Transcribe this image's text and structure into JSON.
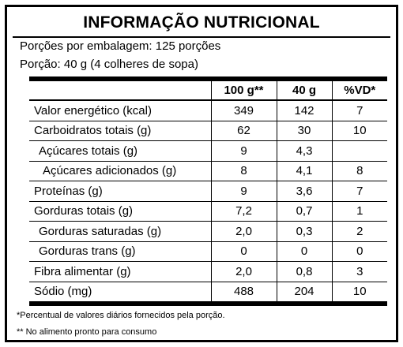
{
  "title": "INFORMAÇÃO NUTRICIONAL",
  "servings_per_package": "Porções por embalagem: 125 porções",
  "serving_size": "Porção: 40 g (4 colheres de sopa)",
  "table": {
    "headers": [
      "",
      "100 g**",
      "40 g",
      "%VD*"
    ],
    "rows": [
      {
        "name": "Valor energético (kcal)",
        "indent": 0,
        "per100": "349",
        "perPortion": "142",
        "vd": "7"
      },
      {
        "name": "Carboidratos totais (g)",
        "indent": 0,
        "per100": "62",
        "perPortion": "30",
        "vd": "10"
      },
      {
        "name": "Açúcares totais (g)",
        "indent": 1,
        "per100": "9",
        "perPortion": "4,3",
        "vd": ""
      },
      {
        "name": "Açúcares adicionados (g)",
        "indent": 2,
        "per100": "8",
        "perPortion": "4,1",
        "vd": "8"
      },
      {
        "name": "Proteínas (g)",
        "indent": 0,
        "per100": "9",
        "perPortion": "3,6",
        "vd": "7"
      },
      {
        "name": "Gorduras totais (g)",
        "indent": 0,
        "per100": "7,2",
        "perPortion": "0,7",
        "vd": "1"
      },
      {
        "name": "Gorduras saturadas (g)",
        "indent": 1,
        "per100": "2,0",
        "perPortion": "0,3",
        "vd": "2"
      },
      {
        "name": "Gorduras trans (g)",
        "indent": 1,
        "per100": "0",
        "perPortion": "0",
        "vd": "0"
      },
      {
        "name": "Fibra alimentar (g)",
        "indent": 0,
        "per100": "2,0",
        "perPortion": "0,8",
        "vd": "3"
      },
      {
        "name": "Sódio (mg)",
        "indent": 0,
        "per100": "488",
        "perPortion": "204",
        "vd": "10"
      }
    ]
  },
  "footnotes": {
    "vd": "*Percentual de valores diários fornecidos pela porção.",
    "ready": "** No alimento pronto para consumo"
  }
}
